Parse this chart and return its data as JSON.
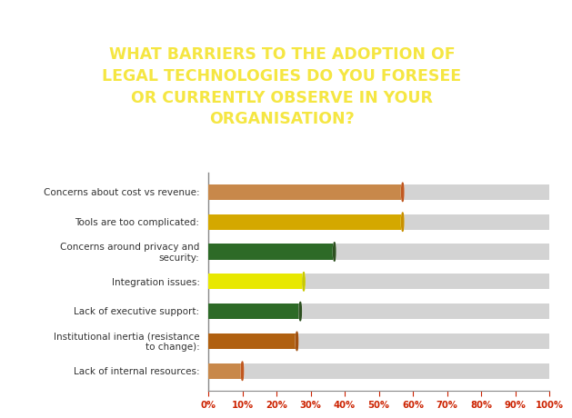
{
  "title_lines": [
    "WHAT BARRIERS TO THE ADOPTION OF",
    "LEGAL TECHNOLOGIES DO YOU FORESEE",
    "OR CURRENTLY OBSERVE IN YOUR",
    "ORGANISATION?"
  ],
  "title_bg_color": "#2d6a27",
  "title_text_color": "#f5e642",
  "categories": [
    "Concerns about cost vs revenue:",
    "Tools are too complicated:",
    "Concerns around privacy and\nsecurity:",
    "Integration issues:",
    "Lack of executive support:",
    "Institutional inertia (resistance\nto change):",
    "Lack of internal resources:"
  ],
  "values": [
    57,
    57,
    37,
    28,
    27,
    26,
    10
  ],
  "bar_colors": [
    "#c8884a",
    "#d4a800",
    "#2d6a27",
    "#e8e800",
    "#2d6a27",
    "#b06010",
    "#c8884a"
  ],
  "dot_colors": [
    "#c05820",
    "#c89000",
    "#2d5020",
    "#c8c800",
    "#2d5020",
    "#a05010",
    "#c05820"
  ],
  "background_color": "#ffffff",
  "bar_height": 0.52,
  "bg_bar_color": "#d3d3d3",
  "tick_label_color": "#cc2200",
  "category_text_color": "#333333",
  "xticks": [
    0,
    10,
    20,
    30,
    40,
    50,
    60,
    70,
    80,
    90,
    100
  ],
  "xtick_labels": [
    "0%",
    "10%",
    "20%",
    "30%",
    "40%",
    "50%",
    "60%",
    "70%",
    "80%",
    "90%",
    "100%"
  ]
}
